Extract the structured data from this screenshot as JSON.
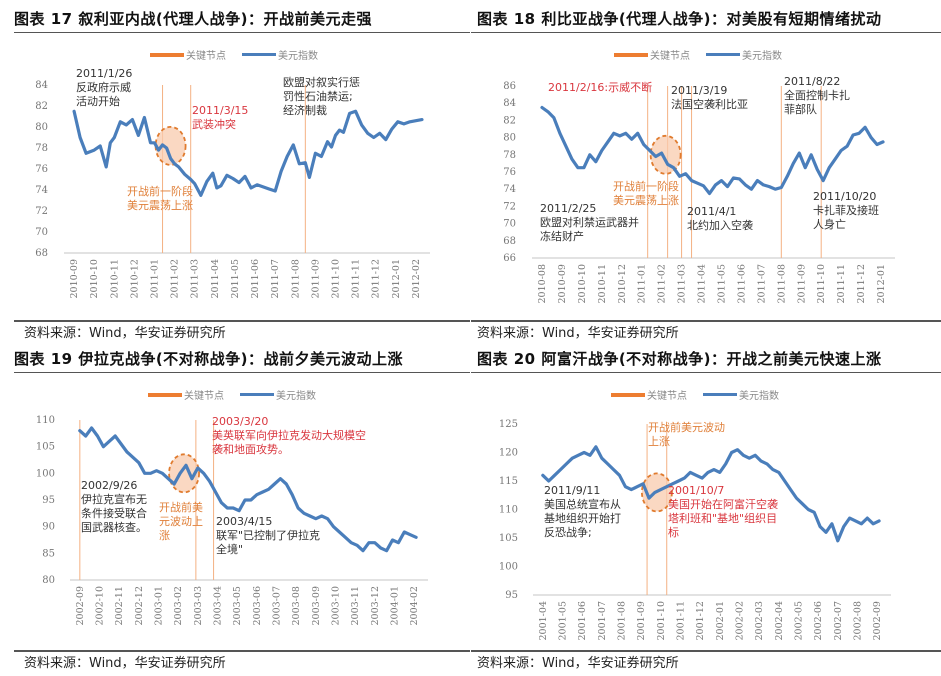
{
  "chart_data": [
    {
      "id": "fig17",
      "type": "line",
      "title": "图表 17 叙利亚内战(代理人战争)：开战前美元走强",
      "legend": [
        "关键节点",
        "美元指数"
      ],
      "legend_position": "top",
      "ylim": [
        68,
        84
      ],
      "yticks": [
        68,
        70,
        72,
        74,
        76,
        78,
        80,
        82,
        84
      ],
      "xticks": [
        "2010-09",
        "2010-10",
        "2010-11",
        "2010-12",
        "2011-01",
        "2011-02",
        "2011-03",
        "2011-04",
        "2011-05",
        "2011-06",
        "2011-07",
        "2011-08",
        "2011-09",
        "2011-10",
        "2011-11",
        "2011-12",
        "2012-01",
        "2012-02"
      ],
      "series": [
        {
          "name": "美元指数",
          "color": "#4A7EBB",
          "x": [
            0,
            0.3,
            0.6,
            1.0,
            1.3,
            1.6,
            1.8,
            2.0,
            2.3,
            2.6,
            2.9,
            3.2,
            3.5,
            3.8,
            4.0,
            4.2,
            4.4,
            4.6,
            4.8,
            5.0,
            5.2,
            5.5,
            5.8,
            6.0,
            6.3,
            6.6,
            6.9,
            7.1,
            7.3,
            7.6,
            7.9,
            8.2,
            8.5,
            8.8,
            9.1,
            9.4,
            9.7,
            10.0,
            10.3,
            10.6,
            10.9,
            11.2,
            11.5,
            11.7,
            12.0,
            12.3,
            12.6,
            12.8,
            13.0,
            13.2,
            13.4,
            13.7,
            14.0,
            14.3,
            14.6,
            14.9,
            15.2,
            15.5,
            15.8,
            16.1,
            16.4,
            16.7,
            17.0,
            17.3
          ],
          "values": [
            81.5,
            79.0,
            77.5,
            77.8,
            78.2,
            76.2,
            78.5,
            79.0,
            80.5,
            80.2,
            80.7,
            79.2,
            80.9,
            78.5,
            78.5,
            77.8,
            78.3,
            78.0,
            77.0,
            76.5,
            76.2,
            75.5,
            75.0,
            74.6,
            73.5,
            74.8,
            75.6,
            74.2,
            74.4,
            75.4,
            75.1,
            74.7,
            75.3,
            74.2,
            74.5,
            74.3,
            74.1,
            73.9,
            75.8,
            77.2,
            78.3,
            76.5,
            76.6,
            75.2,
            77.5,
            77.2,
            78.6,
            78.1,
            79.2,
            79.7,
            79.5,
            81.3,
            81.5,
            80.2,
            79.4,
            79.0,
            79.4,
            78.8,
            79.8,
            80.5,
            80.3,
            80.5,
            80.6,
            80.7
          ]
        },
        {
          "name": "关键节点",
          "color": "#F4B183",
          "vlines_x": [
            4.4,
            5.8,
            11.5
          ]
        }
      ],
      "highlight": {
        "label": "开战前一阶段 美元震荡上涨",
        "x": 4.8,
        "y": 78.2
      }
    },
    {
      "id": "fig18",
      "type": "line",
      "title": "图表 18 利比亚战争(代理人战争)：对美股有短期情绪扰动",
      "legend": [
        "关键节点",
        "美元指数"
      ],
      "legend_position": "top",
      "ylim": [
        66,
        86
      ],
      "yticks": [
        66,
        68,
        70,
        72,
        74,
        76,
        78,
        80,
        82,
        84,
        86
      ],
      "xticks": [
        "2010-08",
        "2010-09",
        "2010-10",
        "2010-11",
        "2010-12",
        "2011-01",
        "2011-02",
        "2011-03",
        "2011-04",
        "2011-05",
        "2011-06",
        "2011-07",
        "2011-08",
        "2011-09",
        "2011-10",
        "2011-11",
        "2011-12",
        "2012-01"
      ],
      "series": [
        {
          "name": "美元指数",
          "color": "#4A7EBB",
          "x": [
            0,
            0.3,
            0.6,
            0.9,
            1.2,
            1.5,
            1.8,
            2.1,
            2.4,
            2.7,
            3.0,
            3.3,
            3.6,
            3.9,
            4.2,
            4.5,
            4.8,
            5.1,
            5.4,
            5.7,
            6.0,
            6.3,
            6.6,
            6.9,
            7.2,
            7.5,
            7.8,
            8.1,
            8.4,
            8.7,
            9.0,
            9.3,
            9.6,
            9.9,
            10.2,
            10.5,
            10.8,
            11.1,
            11.4,
            11.7,
            12.0,
            12.3,
            12.6,
            12.9,
            13.2,
            13.5,
            13.8,
            14.1,
            14.4,
            14.7,
            15.0,
            15.3,
            15.6,
            15.9,
            16.2,
            16.5,
            16.8,
            17.1
          ],
          "values": [
            83.5,
            83.0,
            82.3,
            80.5,
            79.0,
            77.5,
            76.5,
            76.5,
            78.0,
            77.2,
            78.5,
            79.5,
            80.5,
            80.2,
            80.5,
            79.8,
            80.5,
            79.2,
            78.5,
            77.8,
            78.2,
            76.9,
            76.5,
            75.5,
            75.8,
            75.0,
            74.7,
            74.4,
            73.5,
            74.5,
            75.0,
            74.3,
            75.3,
            75.2,
            74.5,
            74.0,
            75.0,
            74.5,
            74.3,
            74.0,
            74.2,
            75.5,
            77.0,
            78.2,
            76.5,
            78.0,
            76.3,
            75.0,
            76.5,
            77.5,
            78.5,
            79.0,
            80.3,
            80.5,
            81.2,
            80.0,
            79.2,
            79.5
          ]
        },
        {
          "name": "关键节点",
          "color": "#F4B183",
          "vlines_x": [
            5.3,
            6.3,
            7.0,
            7.5,
            12.0,
            14.0
          ]
        }
      ],
      "highlight": {
        "label": "开战前一阶段 美元震荡上涨",
        "x": 6.2,
        "y": 78.0
      }
    },
    {
      "id": "fig19",
      "type": "line",
      "title": "图表 19 伊拉克战争(不对称战争)：战前夕美元波动上涨",
      "legend": [
        "关键节点",
        "美元指数"
      ],
      "legend_position": "top",
      "ylim": [
        80,
        110
      ],
      "yticks": [
        80,
        85,
        90,
        95,
        100,
        105,
        110
      ],
      "xticks": [
        "2002-09",
        "2002-10",
        "2002-11",
        "2002-12",
        "2003-01",
        "2003-02",
        "2003-03",
        "2003-04",
        "2003-05",
        "2003-06",
        "2003-07",
        "2003-08",
        "2003-09",
        "2003-10",
        "2003-11",
        "2003-12",
        "2004-01",
        "2004-02"
      ],
      "series": [
        {
          "name": "美元指数",
          "color": "#4A7EBB",
          "x": [
            0,
            0.3,
            0.6,
            0.9,
            1.2,
            1.5,
            1.8,
            2.1,
            2.4,
            2.7,
            3.0,
            3.3,
            3.6,
            3.9,
            4.2,
            4.5,
            4.8,
            5.1,
            5.4,
            5.7,
            6.0,
            6.3,
            6.6,
            6.9,
            7.2,
            7.5,
            7.8,
            8.1,
            8.4,
            8.7,
            9.0,
            9.3,
            9.6,
            9.9,
            10.2,
            10.5,
            10.8,
            11.1,
            11.4,
            11.7,
            12.0,
            12.3,
            12.6,
            12.9,
            13.2,
            13.5,
            13.8,
            14.1,
            14.4,
            14.7,
            15.0,
            15.3,
            15.6,
            15.9,
            16.2,
            16.5,
            16.8,
            17.1
          ],
          "values": [
            108,
            107,
            108.5,
            107,
            105,
            106,
            107,
            105.5,
            104,
            103,
            102,
            100,
            100,
            100.5,
            100,
            99,
            98,
            100,
            101.5,
            99,
            101,
            100,
            98.5,
            96.5,
            94.5,
            93.5,
            93.5,
            93,
            95,
            95,
            96,
            96.5,
            97,
            98,
            99,
            98,
            96,
            93.5,
            92.5,
            92,
            91.5,
            92,
            91.5,
            90,
            89,
            88,
            87,
            86.5,
            85.5,
            87,
            87,
            86,
            85.5,
            87.5,
            87,
            89,
            88.5,
            88
          ]
        },
        {
          "name": "关键节点",
          "color": "#F4B183",
          "vlines_x": [
            0,
            5.9,
            6.8
          ]
        }
      ],
      "highlight": {
        "label": "开战前美元波动上涨",
        "x": 5.3,
        "y": 100
      }
    },
    {
      "id": "fig20",
      "type": "line",
      "title": "图表 20 阿富汗战争(不对称战争)：开战之前美元快速上涨",
      "legend": [
        "关键节点",
        "美元指数"
      ],
      "legend_position": "top",
      "ylim": [
        95,
        125
      ],
      "yticks": [
        95,
        100,
        105,
        110,
        115,
        120,
        125
      ],
      "xticks": [
        "2001-04",
        "2001-05",
        "2001-06",
        "2001-07",
        "2001-08",
        "2001-09",
        "2001-10",
        "2001-11",
        "2001-12",
        "2002-01",
        "2002-02",
        "2002-03",
        "2002-04",
        "2002-05",
        "2002-06",
        "2002-07",
        "2002-08",
        "2002-09"
      ],
      "series": [
        {
          "name": "美元指数",
          "color": "#4A7EBB",
          "x": [
            0,
            0.3,
            0.6,
            0.9,
            1.2,
            1.5,
            1.8,
            2.1,
            2.4,
            2.7,
            3.0,
            3.3,
            3.6,
            3.9,
            4.2,
            4.5,
            4.8,
            5.1,
            5.4,
            5.7,
            6.0,
            6.3,
            6.6,
            6.9,
            7.2,
            7.5,
            7.8,
            8.1,
            8.4,
            8.7,
            9.0,
            9.3,
            9.6,
            9.9,
            10.2,
            10.5,
            10.8,
            11.1,
            11.4,
            11.7,
            12.0,
            12.3,
            12.6,
            12.9,
            13.2,
            13.5,
            13.8,
            14.1,
            14.4,
            14.7,
            15.0,
            15.3,
            15.6,
            15.9,
            16.2,
            16.5,
            16.8,
            17.1
          ],
          "values": [
            116,
            115,
            116,
            117,
            118,
            119,
            119.5,
            120,
            119.5,
            121,
            119,
            118,
            117,
            116,
            114,
            113.5,
            114,
            114.5,
            112,
            113,
            113.5,
            114,
            114.5,
            115,
            115.5,
            116.5,
            116,
            115.5,
            116.5,
            117,
            116.5,
            118,
            120,
            120.5,
            119.5,
            119,
            119.5,
            118.5,
            118,
            117,
            116.5,
            115,
            113.5,
            112,
            111,
            110,
            109.5,
            107,
            106,
            107.5,
            104.5,
            107,
            108.5,
            108,
            107.5,
            108.5,
            107.5,
            108
          ]
        },
        {
          "name": "关键节点",
          "color": "#F4B183",
          "vlines_x": [
            5.3,
            6.3
          ]
        }
      ],
      "highlight": {
        "label": "开战前美元波动上涨",
        "x": 5.8,
        "y": 113
      }
    }
  ],
  "panels": {
    "p17": {
      "title": "图表 17 叙利亚内战(代理人战争)：开战前美元走强",
      "legend_key": "关键节点",
      "legend_usd": "美元指数",
      "source": "资料来源：Wind，华安证券研究所",
      "annotations": {
        "a1": [
          "2011/1/26",
          "反政府示威",
          "活动开始"
        ],
        "a2": [
          "2011/3/15",
          "武装冲突"
        ],
        "a3": [
          "欧盟对叙实行惩",
          "罚性石油禁运;",
          "经济制裁"
        ],
        "a4": [
          "开战前一阶段",
          "美元震荡上涨"
        ]
      }
    },
    "p18": {
      "title": "图表 18 利比亚战争(代理人战争)：对美股有短期情绪扰动",
      "legend_key": "关键节点",
      "legend_usd": "美元指数",
      "source": "资料来源：Wind，华安证券研究所",
      "annotations": {
        "a1": [
          "2011/2/16:示威不断"
        ],
        "a2": [
          "2011/3/19",
          "法国空袭利比亚"
        ],
        "a3": [
          "2011/8/22",
          "全面控制卡扎",
          "菲部队"
        ],
        "a4": [
          "开战前一阶段",
          "美元震荡上涨"
        ],
        "a5": [
          "2011/2/25",
          "欧盟对利禁运武器并",
          "冻结财产"
        ],
        "a6": [
          "2011/4/1",
          "北约加入空袭"
        ],
        "a7": [
          "2011/10/20",
          "卡扎菲及接班",
          "人身亡"
        ]
      }
    },
    "p19": {
      "title": "图表 19 伊拉克战争(不对称战争)：战前夕美元波动上涨",
      "legend_key": "关键节点",
      "legend_usd": "美元指数",
      "source": "资料来源：Wind，华安证券研究所",
      "annotations": {
        "a1": [
          "2003/3/20",
          "美英联军向伊拉克发动大规模空",
          "袭和地面攻势。"
        ],
        "a2": [
          "2002/9/26",
          "伊拉克宣布无",
          "条件接受联合",
          "国武器核查。"
        ],
        "a3": [
          "开战前美",
          "元波动上",
          "涨"
        ],
        "a4": [
          "2003/4/15",
          "联军\"已控制了伊拉克",
          "全境\""
        ]
      }
    },
    "p20": {
      "title": "图表 20 阿富汗战争(不对称战争)：开战之前美元快速上涨",
      "legend_key": "关键节点",
      "legend_usd": "美元指数",
      "source": "资料来源：Wind，华安证券研究所",
      "annotations": {
        "a1": [
          "开战前美元波动",
          "上涨"
        ],
        "a2": [
          "2011/9/11",
          "美国总统宣布从",
          "基地组织开始打",
          "反恐战争;"
        ],
        "a3": [
          "2001/10/7",
          "美国开始在阿富汗空袭",
          "塔利班和\"基地\"组织目",
          "标"
        ]
      }
    }
  },
  "colors": {
    "usd_line": "#4A7EBB",
    "key_line": "#F4B183",
    "legend_orange": "#ED7D31",
    "highlight_fill": "#F8CBAD",
    "highlight_stroke": "#E07B2E",
    "red_text": "#D9363E",
    "orange_text": "#E0803A"
  }
}
